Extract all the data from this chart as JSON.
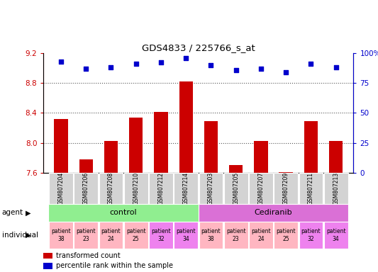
{
  "title": "GDS4833 / 225766_s_at",
  "samples": [
    "GSM807204",
    "GSM807206",
    "GSM807208",
    "GSM807210",
    "GSM807212",
    "GSM807214",
    "GSM807203",
    "GSM807205",
    "GSM807207",
    "GSM807209",
    "GSM807211",
    "GSM807213"
  ],
  "bar_values": [
    8.32,
    7.78,
    8.02,
    8.34,
    8.41,
    8.82,
    8.29,
    7.7,
    8.02,
    7.61,
    8.29,
    8.02
  ],
  "scatter_values": [
    93,
    87,
    88,
    91,
    92,
    96,
    90,
    86,
    87,
    84,
    91,
    88
  ],
  "bar_color": "#cc0000",
  "scatter_color": "#0000cc",
  "ylim_left": [
    7.6,
    9.2
  ],
  "ylim_right": [
    0,
    100
  ],
  "yticks_left": [
    7.6,
    8.0,
    8.4,
    8.8,
    9.2
  ],
  "yticks_right": [
    0,
    25,
    50,
    75,
    100
  ],
  "ytick_labels_right": [
    "0",
    "25",
    "50",
    "75",
    "100%"
  ],
  "agent_groups": [
    {
      "label": "control",
      "start": 0,
      "end": 6,
      "color": "#90ee90"
    },
    {
      "label": "Cediranib",
      "start": 6,
      "end": 12,
      "color": "#da70d6"
    }
  ],
  "patients": [
    "patient\n38",
    "patient\n23",
    "patient\n24",
    "patient\n25",
    "patient\n32",
    "patient\n34",
    "patient\n38",
    "patient\n23",
    "patient\n24",
    "patient\n25",
    "patient\n32",
    "patient\n34"
  ],
  "indiv_colors": [
    "#ffb6c1",
    "#ffb6c1",
    "#ffb6c1",
    "#ffb6c1",
    "#ee82ee",
    "#ee82ee",
    "#ffb6c1",
    "#ffb6c1",
    "#ffb6c1",
    "#ffb6c1",
    "#ee82ee",
    "#ee82ee"
  ],
  "legend_bar_label": "transformed count",
  "legend_scatter_label": "percentile rank within the sample",
  "bar_width": 0.55,
  "tick_color_left": "#cc0000",
  "tick_color_right": "#0000cc",
  "xticklabel_bg": "#d3d3d3",
  "dotted_line_color": "#555555",
  "hline_ticks": [
    8.0,
    8.4,
    8.8
  ]
}
